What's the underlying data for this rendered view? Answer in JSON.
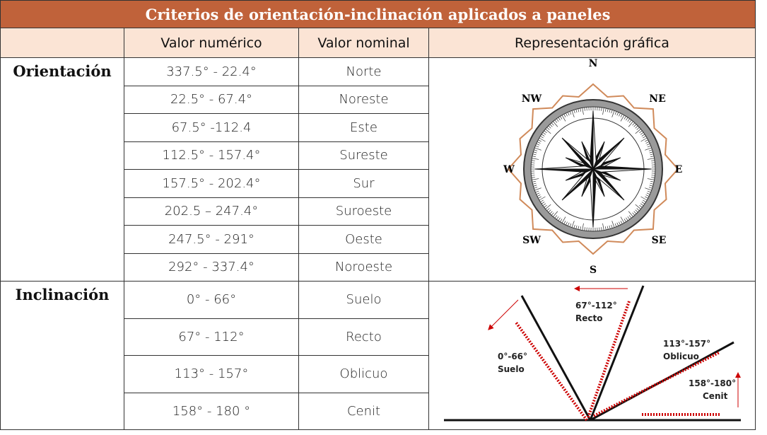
{
  "title": "Criterios de orientación-inclinación aplicados a paneles",
  "table": {
    "header": [
      "Valor numérico",
      "Valor nominal",
      "Representación gráfica"
    ],
    "groups": [
      {
        "label": "Orientación",
        "rows": [
          [
            "337.5° - 22.4°",
            "Norte"
          ],
          [
            "22.5° - 67.4°",
            "Noreste"
          ],
          [
            "67.5° -112.4",
            "Este"
          ],
          [
            "112.5° - 157.4°",
            "Sureste"
          ],
          [
            "157.5° - 202.4°",
            "Sur"
          ],
          [
            "202.5 – 247.4°",
            "Suroeste"
          ],
          [
            "247.5° - 291°",
            "Oeste"
          ],
          [
            "292° - 337.4°",
            "Noroeste"
          ]
        ]
      },
      {
        "label": "Inclinación",
        "rows": [
          [
            "0° - 66°",
            "Suelo"
          ],
          [
            "67° - 112°",
            "Recto"
          ],
          [
            "113° - 157°",
            "Oblicuo"
          ],
          [
            "158° - 180 °",
            "Cenit"
          ]
        ]
      }
    ]
  },
  "compass": {
    "labels": [
      "N",
      "NE",
      "E",
      "SE",
      "S",
      "SW",
      "W",
      "NW"
    ]
  },
  "inclination_diagram": {
    "labels": [
      {
        "range": "67°-112°",
        "name": "Recto"
      },
      {
        "range": "0°-66°",
        "name": "Suelo"
      },
      {
        "range": "113°-157°",
        "name": "Oblicuo"
      },
      {
        "range": "158°-180°",
        "name": "Cenit"
      }
    ]
  }
}
